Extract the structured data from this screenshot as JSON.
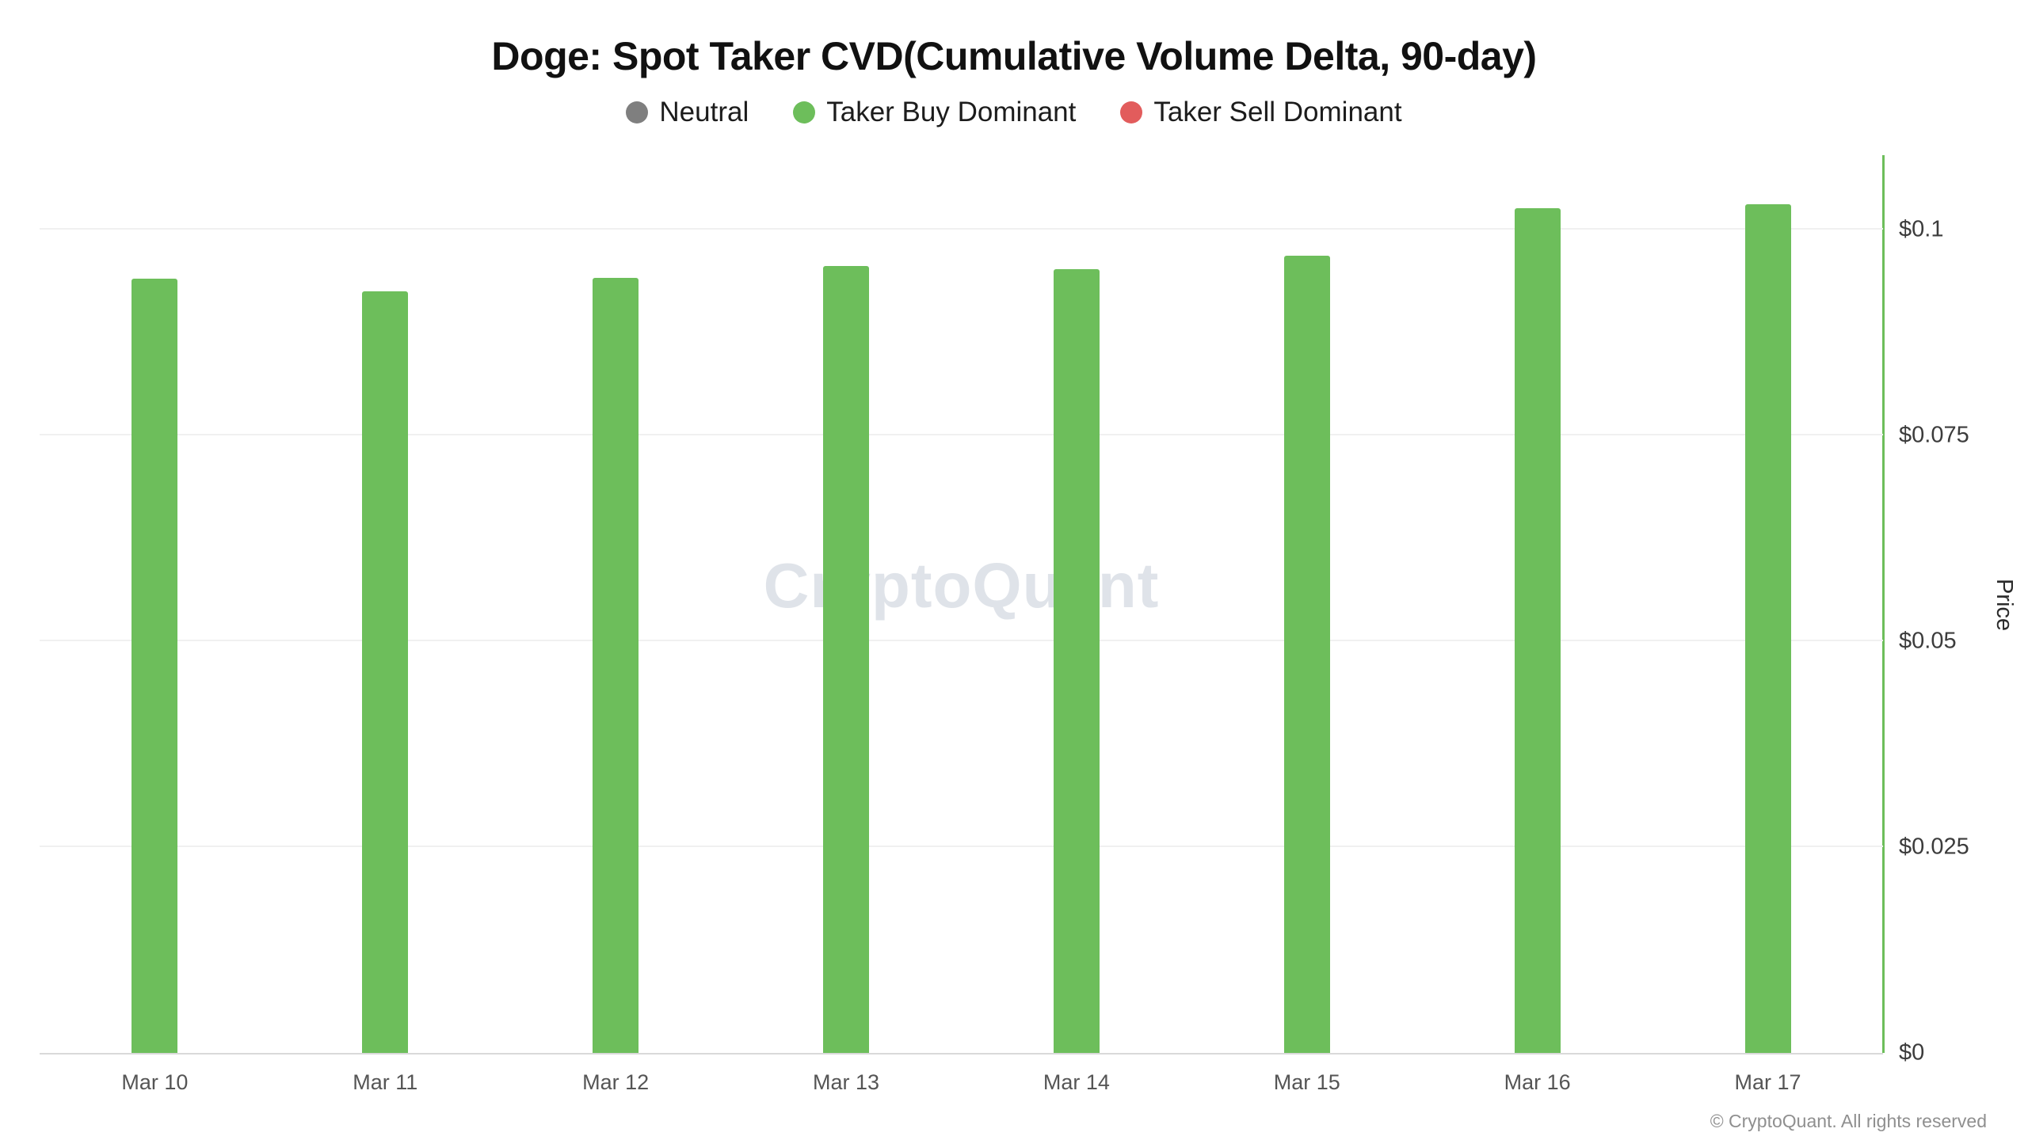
{
  "page": {
    "watermark": "CryptoQuant",
    "footer": "© CryptoQuant. All rights reserved"
  },
  "legend": {
    "items": [
      {
        "label": "Neutral",
        "color": "#7f7f7f"
      },
      {
        "label": "Taker Buy Dominant",
        "color": "#6dbe5b"
      },
      {
        "label": "Taker Sell Dominant",
        "color": "#e25c5c"
      }
    ]
  },
  "chart_data": {
    "type": "bar",
    "title": "Doge: Spot Taker CVD(Cumulative Volume Delta, 90-day)",
    "categories": [
      "Mar 10",
      "Mar 11",
      "Mar 12",
      "Mar 13",
      "Mar 14",
      "Mar 15",
      "Mar 16",
      "Mar 17"
    ],
    "series": [
      {
        "name": "Taker Buy Dominant",
        "values": [
          0.094,
          0.0925,
          0.0941,
          0.0955,
          0.0952,
          0.0968,
          0.1026,
          0.103
        ]
      }
    ],
    "xlabel": "",
    "ylabel": "Price",
    "ylim": [
      0,
      0.109
    ],
    "yticks": [
      {
        "value": 0,
        "label": "$0"
      },
      {
        "value": 0.025,
        "label": "$0.025"
      },
      {
        "value": 0.05,
        "label": "$0.05"
      },
      {
        "value": 0.075,
        "label": "$0.075"
      },
      {
        "value": 0.1,
        "label": "$0.1"
      }
    ],
    "bar_color": "#6dbe5b",
    "axis_line_color": "#6dbe5b",
    "grid": true,
    "legend_position": "top"
  }
}
